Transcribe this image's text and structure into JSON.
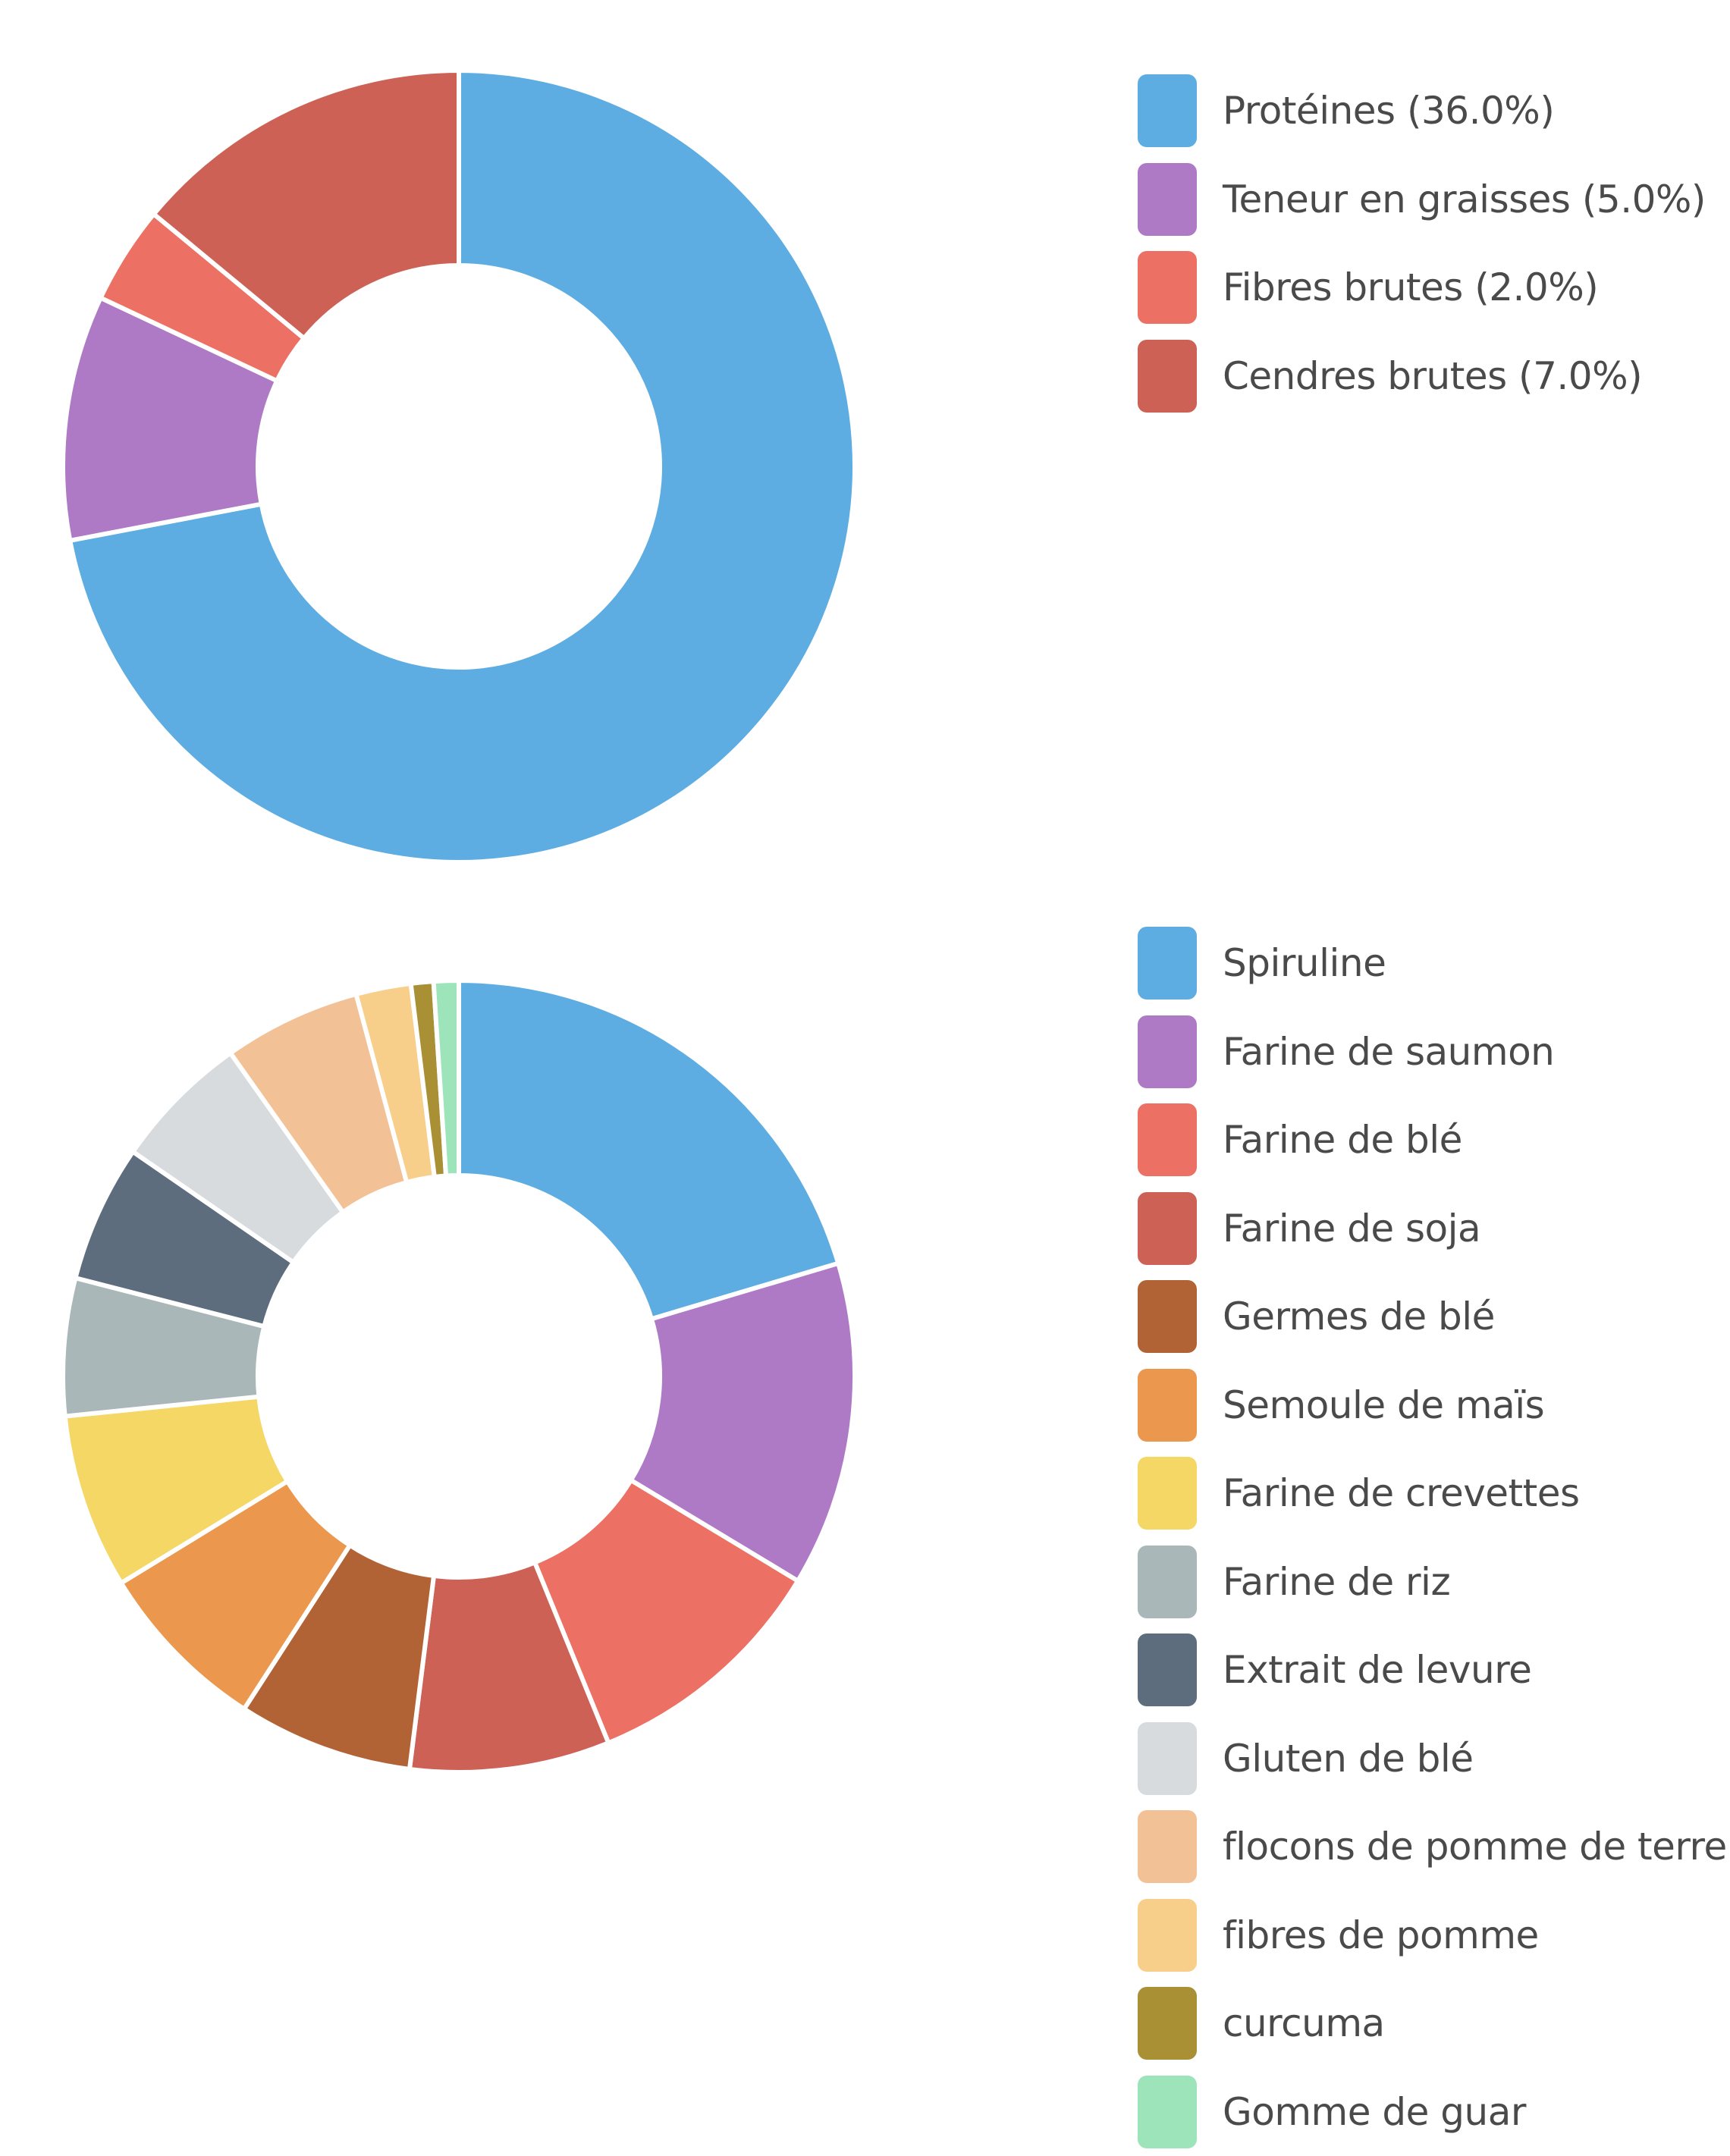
{
  "chart_data": [
    {
      "type": "pie",
      "donut": true,
      "series": [
        {
          "values": [
            36.0,
            5.0,
            2.0,
            7.0
          ]
        }
      ],
      "legend": {
        "placement": "right",
        "items": [
          {
            "label": "Protéines (36.0%)",
            "value": 36.0,
            "color": "#5dade2"
          },
          {
            "label": "Teneur en graisses (5.0%)",
            "value": 5.0,
            "color": "#af7ac5"
          },
          {
            "label": "Fibres brutes (2.0%)",
            "value": 2.0,
            "color": "#ec7063"
          },
          {
            "label": "Cendres brutes (7.0%)",
            "value": 7.0,
            "color": "#cd6155"
          }
        ]
      }
    },
    {
      "type": "pie",
      "donut": true,
      "series": [
        {
          "values": [
            20.0,
            13.0,
            10.0,
            8.0,
            7.0,
            7.0,
            7.0,
            5.5,
            5.5,
            5.5,
            5.5,
            2.2,
            0.9,
            1.0
          ]
        }
      ],
      "legend": {
        "placement": "right",
        "items": [
          {
            "label": "Spiruline",
            "value": 20.0,
            "color": "#5dade2"
          },
          {
            "label": "Farine de saumon",
            "value": 13.0,
            "color": "#af7ac5"
          },
          {
            "label": "Farine de blé",
            "value": 10.0,
            "color": "#ec7063"
          },
          {
            "label": "Farine de soja",
            "value": 8.0,
            "color": "#cd6155"
          },
          {
            "label": "Germes de blé",
            "value": 7.0,
            "color": "#b26336"
          },
          {
            "label": "Semoule de maïs",
            "value": 7.0,
            "color": "#eb984e"
          },
          {
            "label": "Farine de crevettes",
            "value": 7.0,
            "color": "#f4d764"
          },
          {
            "label": "Farine de riz",
            "value": 5.5,
            "color": "#aab7b8"
          },
          {
            "label": "Extrait de levure",
            "value": 5.5,
            "color": "#5d6d7e"
          },
          {
            "label": "Gluten de blé",
            "value": 5.5,
            "color": "#d7dbdd"
          },
          {
            "label": "flocons de pomme de terre",
            "value": 5.5,
            "color": "#f3c196"
          },
          {
            "label": "fibres de pomme",
            "value": 2.2,
            "color": "#f7cf8a"
          },
          {
            "label": "curcuma",
            "value": 0.9,
            "color": "#a99035"
          },
          {
            "label": "Gomme de guar",
            "value": 1.0,
            "color": "#9de4bb"
          }
        ]
      }
    }
  ]
}
